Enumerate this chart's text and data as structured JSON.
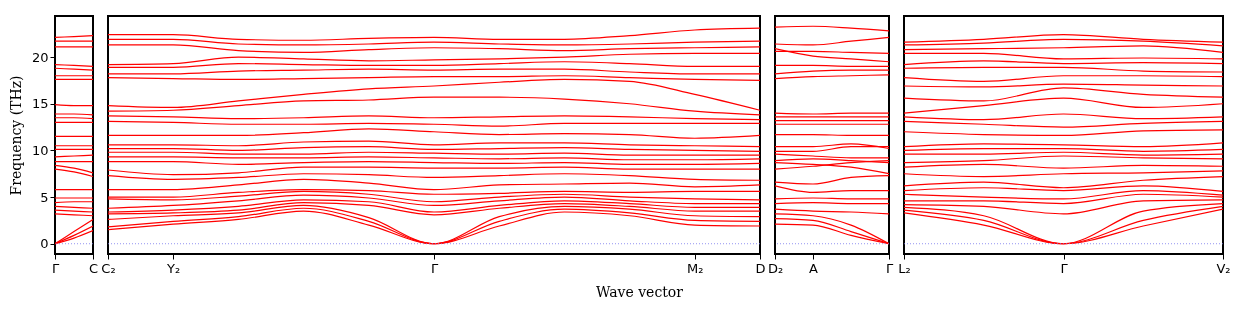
{
  "chart_data": [
    {
      "type": "line",
      "ylabel": "Frequency (THz)",
      "categories": [
        "Γ",
        null,
        "C"
      ],
      "ylim": [
        -1.1,
        24.4
      ],
      "yticks": [
        0,
        5,
        10,
        15,
        20
      ],
      "ref_lines": [
        {
          "axis": "y",
          "value": 0,
          "color": "#7777ee",
          "line_style": "dotted"
        }
      ],
      "series": [
        {
          "color": "#ff0000",
          "values": [
            22.1,
            22.2,
            22.3
          ]
        },
        {
          "color": "#ff0000",
          "values": [
            21.7,
            21.7,
            21.7
          ]
        },
        {
          "color": "#ff0000",
          "values": [
            21.1,
            21.1,
            21.1
          ]
        },
        {
          "color": "#ff0000",
          "values": [
            19.2,
            19.1,
            19.0
          ]
        },
        {
          "color": "#ff0000",
          "values": [
            18.8,
            18.7,
            18.6
          ]
        },
        {
          "color": "#ff0000",
          "values": [
            18.0,
            18.0,
            18.0
          ]
        },
        {
          "color": "#ff0000",
          "values": [
            17.6,
            17.6,
            17.6
          ]
        },
        {
          "color": "#ff0000",
          "values": [
            14.9,
            14.8,
            14.8
          ]
        },
        {
          "color": "#ff0000",
          "values": [
            13.9,
            13.9,
            13.8
          ]
        },
        {
          "color": "#ff0000",
          "values": [
            13.5,
            13.5,
            13.4
          ]
        },
        {
          "color": "#ff0000",
          "values": [
            13.0,
            13.0,
            13.0
          ]
        },
        {
          "color": "#ff0000",
          "values": [
            11.5,
            11.5,
            11.5
          ]
        },
        {
          "color": "#ff0000",
          "values": [
            10.5,
            10.5,
            10.5
          ]
        },
        {
          "color": "#ff0000",
          "values": [
            10.1,
            10.1,
            10.1
          ]
        },
        {
          "color": "#ff0000",
          "values": [
            9.3,
            9.4,
            9.5
          ]
        },
        {
          "color": "#ff0000",
          "values": [
            8.8,
            8.8,
            8.8
          ]
        },
        {
          "color": "#ff0000",
          "values": [
            8.4,
            8.1,
            7.6
          ]
        },
        {
          "color": "#ff0000",
          "values": [
            8.0,
            7.7,
            7.2
          ]
        },
        {
          "color": "#ff0000",
          "values": [
            5.8,
            5.8,
            5.8
          ]
        },
        {
          "color": "#ff0000",
          "values": [
            4.9,
            4.9,
            4.9
          ]
        },
        {
          "color": "#ff0000",
          "values": [
            4.4,
            4.5,
            4.5
          ]
        },
        {
          "color": "#ff0000",
          "values": [
            4.0,
            3.9,
            3.8
          ]
        },
        {
          "color": "#ff0000",
          "values": [
            3.6,
            3.5,
            3.4
          ]
        },
        {
          "color": "#ff0000",
          "values": [
            3.2,
            3.1,
            3.0
          ]
        },
        {
          "color": "#ff0000",
          "values": [
            0,
            1.3,
            2.6
          ]
        },
        {
          "color": "#ff0000",
          "values": [
            0,
            0.9,
            1.9
          ]
        },
        {
          "color": "#ff0000",
          "values": [
            0,
            0.6,
            1.4
          ]
        }
      ]
    },
    {
      "type": "line",
      "xlabel": "Wave vector",
      "tick_labels": "x",
      "categories": [
        "C₂",
        "Y₂",
        null,
        null,
        null,
        "Γ",
        null,
        null,
        null,
        "M₂",
        "D"
      ],
      "ylim": [
        -1.1,
        24.4
      ],
      "yticks": [
        0,
        5,
        10,
        15,
        20
      ],
      "ref_lines": [
        {
          "axis": "y",
          "value": 0,
          "color": "#7777ee",
          "line_style": "dotted"
        }
      ],
      "series": [
        {
          "color": "#ff0000",
          "values": [
            22.4,
            22.4,
            21.9,
            21.8,
            22.0,
            22.1,
            21.9,
            21.9,
            22.3,
            22.9,
            23.1
          ]
        },
        {
          "color": "#ff0000",
          "values": [
            21.9,
            21.9,
            21.4,
            21.3,
            21.4,
            21.6,
            21.4,
            21.3,
            21.4,
            21.6,
            21.7
          ]
        },
        {
          "color": "#ff0000",
          "values": [
            21.3,
            21.3,
            20.7,
            20.5,
            20.8,
            21.0,
            20.9,
            20.7,
            20.9,
            21.0,
            21.1
          ]
        },
        {
          "color": "#ff0000",
          "values": [
            19.2,
            19.3,
            20.0,
            19.8,
            19.6,
            19.7,
            19.8,
            20.0,
            20.3,
            20.4,
            20.4
          ]
        },
        {
          "color": "#ff0000",
          "values": [
            18.9,
            18.9,
            19.3,
            19.2,
            19.1,
            19.1,
            19.3,
            19.5,
            19.3,
            19.0,
            19.0
          ]
        },
        {
          "color": "#ff0000",
          "values": [
            18.2,
            18.2,
            18.5,
            18.6,
            18.7,
            18.6,
            18.7,
            18.7,
            18.4,
            18.2,
            18.2
          ]
        },
        {
          "color": "#ff0000",
          "values": [
            17.8,
            17.7,
            17.6,
            17.7,
            17.8,
            17.9,
            17.9,
            18.0,
            17.8,
            17.6,
            17.5
          ]
        },
        {
          "color": "#ff0000",
          "values": [
            14.8,
            14.6,
            15.3,
            16.0,
            16.6,
            16.9,
            17.3,
            17.6,
            17.4,
            16.0,
            14.3
          ]
        },
        {
          "color": "#ff0000",
          "values": [
            14.2,
            14.3,
            14.8,
            15.3,
            15.4,
            15.7,
            15.7,
            15.5,
            15.0,
            14.2,
            13.8
          ]
        },
        {
          "color": "#ff0000",
          "values": [
            13.7,
            13.6,
            13.4,
            13.5,
            13.7,
            13.5,
            13.6,
            13.7,
            13.6,
            13.4,
            13.3
          ]
        },
        {
          "color": "#ff0000",
          "values": [
            13.1,
            13.0,
            12.8,
            12.8,
            12.9,
            12.8,
            12.6,
            12.9,
            12.9,
            12.9,
            12.9
          ]
        },
        {
          "color": "#ff0000",
          "values": [
            11.6,
            11.6,
            11.6,
            11.9,
            12.3,
            12.0,
            11.7,
            11.8,
            11.7,
            11.3,
            11.6
          ]
        },
        {
          "color": "#ff0000",
          "values": [
            10.6,
            10.6,
            10.5,
            10.9,
            11.0,
            10.6,
            10.8,
            10.8,
            10.6,
            10.5,
            10.4
          ]
        },
        {
          "color": "#ff0000",
          "values": [
            10.2,
            10.2,
            10.0,
            10.3,
            10.4,
            10.1,
            10.2,
            10.3,
            10.1,
            10.0,
            9.9
          ]
        },
        {
          "color": "#ff0000",
          "values": [
            9.8,
            9.8,
            9.6,
            9.6,
            9.8,
            9.7,
            9.6,
            9.7,
            9.5,
            9.5,
            9.5
          ]
        },
        {
          "color": "#ff0000",
          "values": [
            9.3,
            9.3,
            9.2,
            9.2,
            9.3,
            9.2,
            9.1,
            9.2,
            9.0,
            9.0,
            9.1
          ]
        },
        {
          "color": "#ff0000",
          "values": [
            8.8,
            8.8,
            8.5,
            8.7,
            8.8,
            8.7,
            8.6,
            8.7,
            8.5,
            8.5,
            8.6
          ]
        },
        {
          "color": "#ff0000",
          "values": [
            7.9,
            7.4,
            7.6,
            8.2,
            8.2,
            8.1,
            8.1,
            8.2,
            8.0,
            8.0,
            8.0
          ]
        },
        {
          "color": "#ff0000",
          "values": [
            7.3,
            6.9,
            7.1,
            7.5,
            7.4,
            7.1,
            7.3,
            7.5,
            7.3,
            6.9,
            6.8
          ]
        },
        {
          "color": "#ff0000",
          "values": [
            5.8,
            5.8,
            6.3,
            6.9,
            6.5,
            5.8,
            6.3,
            6.4,
            6.5,
            6.1,
            6.3
          ]
        },
        {
          "color": "#ff0000",
          "values": [
            5.0,
            5.0,
            5.5,
            5.8,
            5.7,
            5.3,
            5.4,
            5.6,
            5.5,
            5.6,
            5.6
          ]
        },
        {
          "color": "#ff0000",
          "values": [
            4.8,
            4.7,
            5.1,
            5.6,
            5.3,
            4.5,
            5.0,
            5.3,
            5.0,
            4.8,
            4.7
          ]
        },
        {
          "color": "#ff0000",
          "values": [
            3.8,
            4.1,
            4.6,
            5.2,
            4.9,
            4.1,
            4.6,
            5.0,
            4.6,
            4.3,
            4.3
          ]
        },
        {
          "color": "#ff0000",
          "values": [
            3.4,
            3.6,
            4.0,
            4.7,
            4.5,
            3.4,
            4.1,
            4.6,
            4.3,
            3.9,
            3.9
          ]
        },
        {
          "color": "#ff0000",
          "values": [
            3.2,
            3.3,
            3.6,
            4.4,
            4.1,
            3.1,
            3.8,
            4.3,
            4.0,
            3.5,
            3.5
          ]
        },
        {
          "color": "#ff0000",
          "values": [
            2.6,
            3.0,
            3.3,
            4.1,
            2.8,
            0,
            2.9,
            4.0,
            3.7,
            3.0,
            2.9
          ]
        },
        {
          "color": "#ff0000",
          "values": [
            1.8,
            2.4,
            2.9,
            3.8,
            2.4,
            0,
            2.4,
            3.7,
            3.3,
            2.5,
            2.4
          ]
        },
        {
          "color": "#ff0000",
          "values": [
            1.5,
            2.1,
            2.6,
            3.5,
            2.0,
            0,
            1.9,
            3.4,
            3.0,
            2.0,
            1.9
          ]
        }
      ]
    },
    {
      "type": "line",
      "tick_labels": "x",
      "categories": [
        "D₂",
        "A",
        null,
        "Γ"
      ],
      "ylim": [
        -1.1,
        24.4
      ],
      "yticks": [
        0,
        5,
        10,
        15,
        20
      ],
      "ref_lines": [
        {
          "axis": "y",
          "value": 0,
          "color": "#7777ee",
          "line_style": "dotted"
        }
      ],
      "series": [
        {
          "color": "#ff0000",
          "values": [
            23.2,
            23.3,
            23.1,
            22.8
          ]
        },
        {
          "color": "#ff0000",
          "values": [
            21.4,
            21.3,
            21.7,
            22.1
          ]
        },
        {
          "color": "#ff0000",
          "values": [
            20.6,
            20.6,
            20.5,
            20.4
          ]
        },
        {
          "color": "#ff0000",
          "values": [
            20.9,
            20.1,
            19.8,
            19.5
          ]
        },
        {
          "color": "#ff0000",
          "values": [
            19.1,
            19.1,
            19.0,
            19.0
          ]
        },
        {
          "color": "#ff0000",
          "values": [
            18.2,
            18.5,
            18.6,
            18.6
          ]
        },
        {
          "color": "#ff0000",
          "values": [
            17.7,
            17.9,
            18.0,
            18.1
          ]
        },
        {
          "color": "#ff0000",
          "values": [
            14.0,
            13.9,
            14.0,
            14.0
          ]
        },
        {
          "color": "#ff0000",
          "values": [
            13.6,
            13.6,
            13.6,
            13.6
          ]
        },
        {
          "color": "#ff0000",
          "values": [
            13.2,
            13.2,
            13.2,
            13.2
          ]
        },
        {
          "color": "#ff0000",
          "values": [
            12.8,
            12.8,
            12.8,
            12.8
          ]
        },
        {
          "color": "#ff0000",
          "values": [
            11.7,
            11.7,
            11.6,
            11.6
          ]
        },
        {
          "color": "#ff0000",
          "values": [
            10.4,
            10.4,
            10.7,
            10.2
          ]
        },
        {
          "color": "#ff0000",
          "values": [
            9.9,
            9.9,
            10.4,
            10.4
          ]
        },
        {
          "color": "#ff0000",
          "values": [
            9.6,
            9.4,
            9.2,
            9.2
          ]
        },
        {
          "color": "#ff0000",
          "values": [
            8.9,
            9.1,
            8.9,
            8.7
          ]
        },
        {
          "color": "#ff0000",
          "values": [
            8.7,
            8.5,
            8.2,
            7.5
          ]
        },
        {
          "color": "#ff0000",
          "values": [
            8.0,
            8.3,
            8.7,
            8.9
          ]
        },
        {
          "color": "#ff0000",
          "values": [
            6.6,
            6.4,
            7.1,
            7.3
          ]
        },
        {
          "color": "#ff0000",
          "values": [
            6.2,
            5.5,
            5.7,
            5.7
          ]
        },
        {
          "color": "#ff0000",
          "values": [
            4.8,
            4.9,
            4.8,
            4.8
          ]
        },
        {
          "color": "#ff0000",
          "values": [
            4.3,
            4.4,
            4.3,
            4.3
          ]
        },
        {
          "color": "#ff0000",
          "values": [
            3.7,
            3.5,
            3.4,
            3.2
          ]
        },
        {
          "color": "#ff0000",
          "values": [
            3.2,
            3.0,
            2.0,
            0
          ]
        },
        {
          "color": "#ff0000",
          "values": [
            2.7,
            2.5,
            1.3,
            0
          ]
        },
        {
          "color": "#ff0000",
          "values": [
            2.1,
            2.0,
            0.9,
            0
          ]
        }
      ]
    },
    {
      "type": "line",
      "tick_labels": "x",
      "categories": [
        "L₂",
        null,
        "Γ",
        null,
        "V₂"
      ],
      "ylim": [
        -1.1,
        24.4
      ],
      "yticks": [
        0,
        5,
        10,
        15,
        20
      ],
      "ref_lines": [
        {
          "axis": "y",
          "value": 0,
          "color": "#7777ee",
          "line_style": "dotted"
        }
      ],
      "series": [
        {
          "color": "#ff0000",
          "values": [
            21.6,
            21.9,
            22.4,
            21.9,
            21.6
          ]
        },
        {
          "color": "#ff0000",
          "values": [
            21.3,
            21.5,
            21.9,
            21.7,
            21.2
          ]
        },
        {
          "color": "#ff0000",
          "values": [
            20.8,
            20.9,
            21.0,
            21.2,
            20.5
          ]
        },
        {
          "color": "#ff0000",
          "values": [
            20.4,
            20.4,
            19.8,
            19.9,
            19.8
          ]
        },
        {
          "color": "#ff0000",
          "values": [
            19.2,
            19.6,
            19.3,
            19.4,
            19.3
          ]
        },
        {
          "color": "#ff0000",
          "values": [
            18.8,
            18.9,
            18.9,
            18.5,
            18.4
          ]
        },
        {
          "color": "#ff0000",
          "values": [
            17.8,
            17.4,
            18.0,
            18.0,
            17.9
          ]
        },
        {
          "color": "#ff0000",
          "values": [
            16.9,
            16.8,
            17.1,
            17.0,
            16.9
          ]
        },
        {
          "color": "#ff0000",
          "values": [
            15.6,
            15.3,
            16.7,
            16.0,
            15.7
          ]
        },
        {
          "color": "#ff0000",
          "values": [
            14.0,
            14.8,
            15.6,
            14.6,
            15.0
          ]
        },
        {
          "color": "#ff0000",
          "values": [
            13.6,
            13.3,
            13.9,
            13.4,
            13.6
          ]
        },
        {
          "color": "#ff0000",
          "values": [
            13.1,
            12.8,
            12.5,
            12.9,
            13.1
          ]
        },
        {
          "color": "#ff0000",
          "values": [
            12.0,
            11.7,
            11.6,
            12.1,
            12.2
          ]
        },
        {
          "color": "#ff0000",
          "values": [
            10.4,
            10.7,
            10.6,
            10.4,
            10.8
          ]
        },
        {
          "color": "#ff0000",
          "values": [
            10.0,
            10.2,
            10.2,
            9.9,
            10.1
          ]
        },
        {
          "color": "#ff0000",
          "values": [
            9.6,
            9.6,
            9.8,
            9.5,
            9.6
          ]
        },
        {
          "color": "#ff0000",
          "values": [
            8.7,
            8.9,
            9.4,
            9.2,
            9.1
          ]
        },
        {
          "color": "#ff0000",
          "values": [
            8.2,
            8.5,
            8.1,
            8.4,
            8.3
          ]
        },
        {
          "color": "#ff0000",
          "values": [
            7.5,
            7.2,
            7.5,
            7.6,
            7.8
          ]
        },
        {
          "color": "#ff0000",
          "values": [
            6.2,
            6.6,
            6.0,
            6.8,
            7.2
          ]
        },
        {
          "color": "#ff0000",
          "values": [
            5.7,
            6.0,
            5.7,
            6.2,
            5.6
          ]
        },
        {
          "color": "#ff0000",
          "values": [
            5.3,
            5.0,
            4.8,
            5.7,
            5.2
          ]
        },
        {
          "color": "#ff0000",
          "values": [
            4.6,
            4.6,
            4.3,
            5.3,
            5.0
          ]
        },
        {
          "color": "#ff0000",
          "values": [
            4.2,
            4.0,
            3.2,
            4.6,
            4.7
          ]
        },
        {
          "color": "#ff0000",
          "values": [
            3.9,
            3.0,
            0,
            3.5,
            4.3
          ]
        },
        {
          "color": "#ff0000",
          "values": [
            3.6,
            2.5,
            0,
            2.5,
            4.0
          ]
        },
        {
          "color": "#ff0000",
          "values": [
            3.3,
            2.0,
            0,
            1.9,
            3.7
          ]
        }
      ]
    }
  ]
}
